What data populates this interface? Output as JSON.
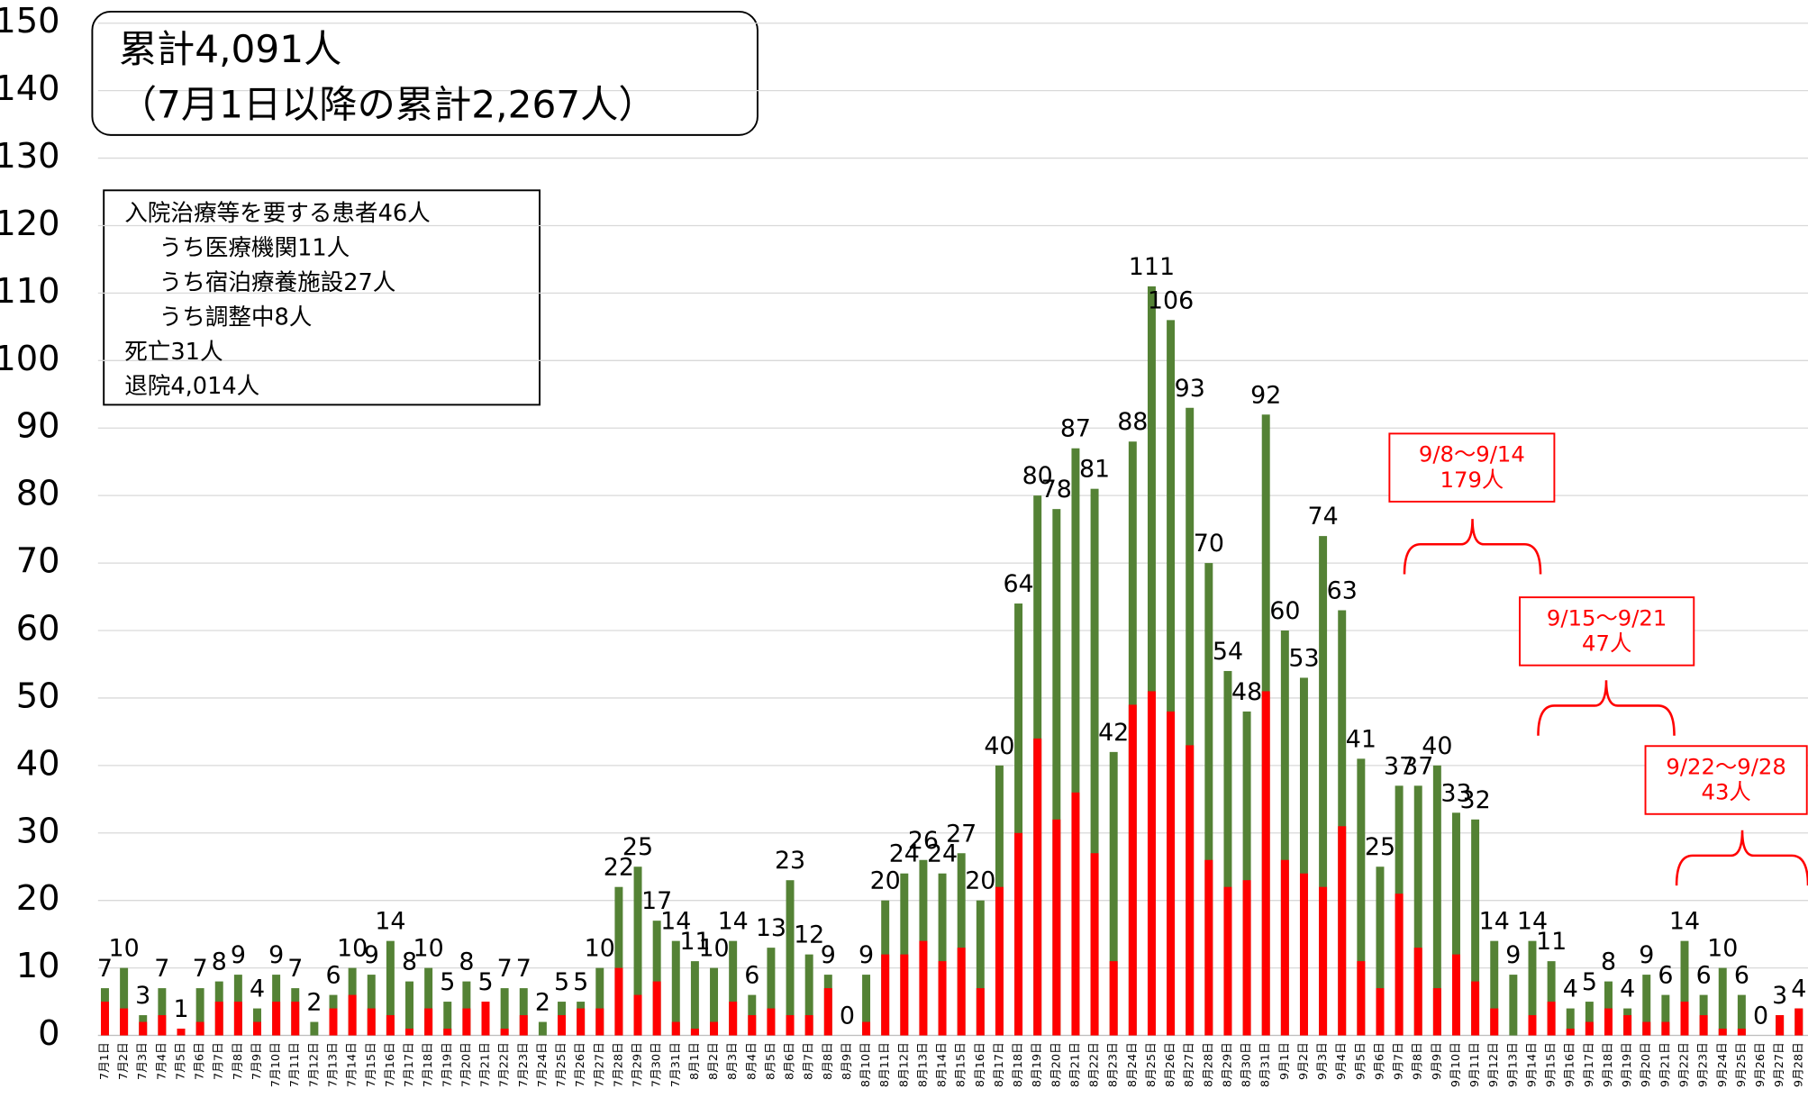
{
  "chart_data": {
    "type": "bar",
    "overlap": true,
    "grid": true,
    "categories": [
      "7月1日",
      "7月2日",
      "7月3日",
      "7月4日",
      "7月5日",
      "7月6日",
      "7月7日",
      "7月8日",
      "7月9日",
      "7月10日",
      "7月11日",
      "7月12日",
      "7月13日",
      "7月14日",
      "7月15日",
      "7月16日",
      "7月17日",
      "7月18日",
      "7月19日",
      "7月20日",
      "7月21日",
      "7月22日",
      "7月23日",
      "7月24日",
      "7月25日",
      "7月26日",
      "7月27日",
      "7月28日",
      "7月29日",
      "7月30日",
      "7月31日",
      "8月1日",
      "8月2日",
      "8月3日",
      "8月4日",
      "8月5日",
      "8月6日",
      "8月7日",
      "8月8日",
      "8月9日",
      "8月10日",
      "8月11日",
      "8月12日",
      "8月13日",
      "8月14日",
      "8月15日",
      "8月16日",
      "8月17日",
      "8月18日",
      "8月19日",
      "8月20日",
      "8月21日",
      "8月22日",
      "8月23日",
      "8月24日",
      "8月25日",
      "8月26日",
      "8月27日",
      "8月28日",
      "8月29日",
      "8月30日",
      "8月31日",
      "9月1日",
      "9月2日",
      "9月3日",
      "9月4日",
      "9月5日",
      "9月6日",
      "9月7日",
      "9月8日",
      "9月9日",
      "9月10日",
      "9月11日",
      "9月12日",
      "9月13日",
      "9月14日",
      "9月15日",
      "9月16日",
      "9月17日",
      "9月18日",
      "9月19日",
      "9月20日",
      "9月21日",
      "9月22日",
      "9月23日",
      "9月24日",
      "9月25日",
      "9月26日",
      "9月27日",
      "9月28日"
    ],
    "series": [
      {
        "color": "#548235",
        "values": [
          7,
          10,
          3,
          7,
          1,
          7,
          8,
          9,
          4,
          9,
          7,
          2,
          6,
          10,
          9,
          14,
          8,
          10,
          5,
          8,
          5,
          7,
          7,
          2,
          5,
          5,
          10,
          22,
          25,
          17,
          14,
          11,
          10,
          14,
          6,
          13,
          23,
          12,
          9,
          0,
          9,
          20,
          24,
          26,
          24,
          27,
          20,
          40,
          64,
          80,
          78,
          87,
          81,
          42,
          88,
          111,
          106,
          93,
          70,
          54,
          48,
          92,
          60,
          53,
          74,
          63,
          41,
          25,
          37,
          37,
          40,
          33,
          32,
          14,
          9,
          14,
          11,
          4,
          5,
          8,
          4,
          9,
          6,
          14,
          6,
          10,
          6,
          0,
          3,
          4
        ]
      },
      {
        "color": "#ff0000",
        "values": [
          5,
          4,
          2,
          3,
          1,
          2,
          5,
          5,
          2,
          5,
          5,
          0,
          4,
          6,
          4,
          3,
          1,
          4,
          1,
          4,
          5,
          1,
          3,
          0,
          3,
          4,
          4,
          10,
          6,
          8,
          2,
          1,
          2,
          5,
          3,
          4,
          3,
          3,
          7,
          0,
          2,
          12,
          12,
          14,
          11,
          13,
          7,
          22,
          30,
          44,
          32,
          36,
          27,
          11,
          49,
          51,
          48,
          43,
          26,
          22,
          23,
          51,
          26,
          24,
          22,
          31,
          11,
          7,
          21,
          13,
          7,
          12,
          8,
          4,
          0,
          3,
          5,
          1,
          2,
          4,
          3,
          2,
          2,
          5,
          3,
          1,
          1,
          0,
          3,
          4
        ]
      }
    ],
    "ylim": [
      0,
      150
    ],
    "yticks": [
      0,
      10,
      20,
      30,
      40,
      50,
      60,
      70,
      80,
      90,
      100,
      110,
      120,
      130,
      140,
      150
    ],
    "annotations": {
      "cumulative": [
        "累計4,091人",
        "（7月1日以降の累計2,267人）"
      ],
      "status": [
        "入院治療等を要する患者46人",
        "うち医療機関11人",
        "うち宿泊療養施設27人",
        "うち調整中8人",
        "死亡31人",
        "退院4,014人"
      ],
      "weekly": [
        {
          "text": [
            "9/8～9/14",
            "179人"
          ]
        },
        {
          "text": [
            "9/15～9/21",
            "47人"
          ]
        },
        {
          "text": [
            "9/22～9/28",
            "43人"
          ]
        }
      ]
    }
  }
}
